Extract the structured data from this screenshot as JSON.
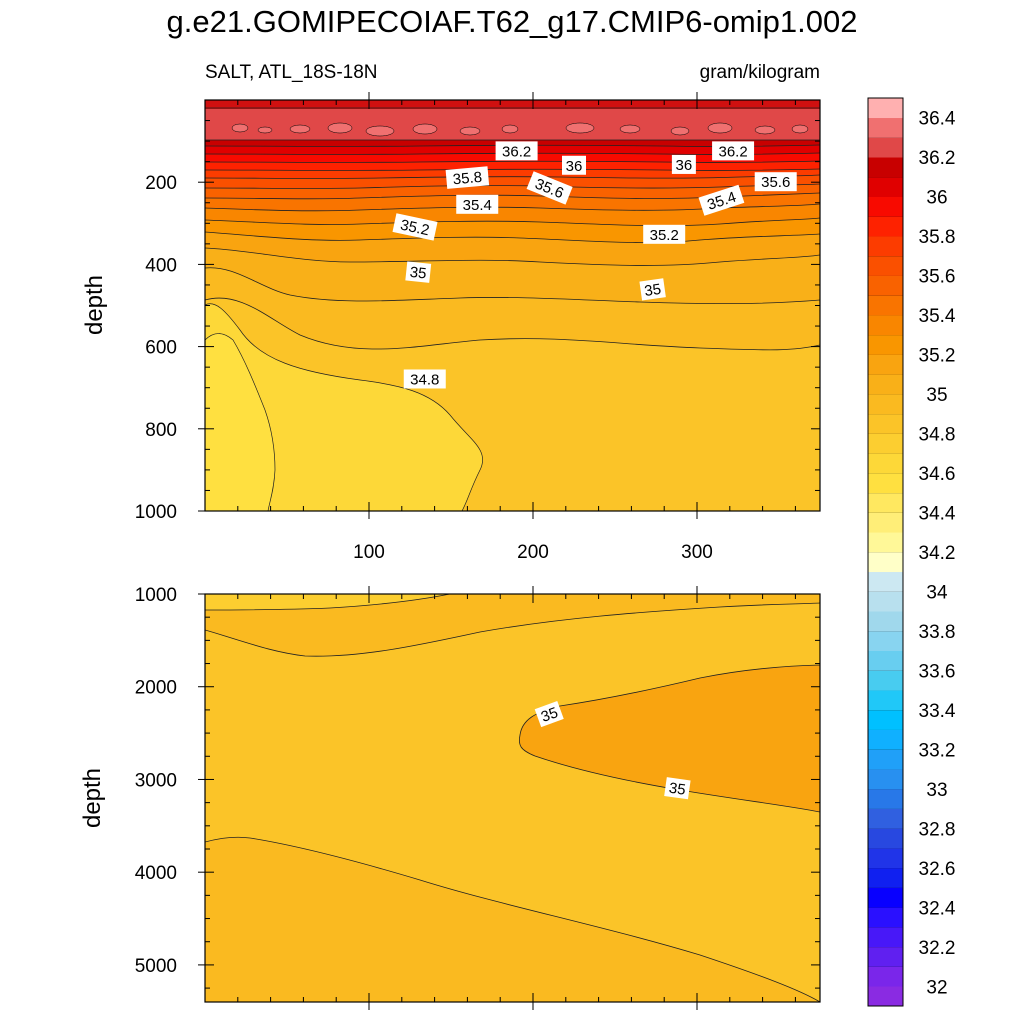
{
  "title": "g.e21.GOMIPECOIAF.T62_g17.CMIP6-omip1.002",
  "subtitle_left": "SALT, ATL_18S-18N",
  "subtitle_right": "gram/kilogram",
  "colorbar": {
    "levels": [
      32,
      32.1,
      32.2,
      32.3,
      32.4,
      32.5,
      32.6,
      32.7,
      32.8,
      32.9,
      33,
      33.1,
      33.2,
      33.3,
      33.4,
      33.5,
      33.6,
      33.7,
      33.8,
      33.9,
      34,
      34.1,
      34.2,
      34.3,
      34.4,
      34.5,
      34.6,
      34.7,
      34.8,
      34.9,
      35,
      35.1,
      35.2,
      35.3,
      35.4,
      35.5,
      35.6,
      35.7,
      35.8,
      35.9,
      36,
      36.1,
      36.2,
      36.3,
      36.4,
      36.5
    ],
    "labels": [
      "32",
      "32.2",
      "32.4",
      "32.6",
      "32.8",
      "33",
      "33.2",
      "33.4",
      "33.6",
      "33.8",
      "34",
      "34.2",
      "34.4",
      "34.6",
      "34.8",
      "35",
      "35.2",
      "35.4",
      "35.6",
      "35.8",
      "36",
      "36.2",
      "36.4"
    ],
    "colors": [
      "#8a2be2",
      "#7a26ea",
      "#6020f0",
      "#4818f8",
      "#2a10ff",
      "#0800ff",
      "#1020f0",
      "#2034e8",
      "#2848e0",
      "#3060e0",
      "#2878e8",
      "#2890f0",
      "#20a0f8",
      "#10b0ff",
      "#00c0ff",
      "#20c8f8",
      "#48ccf0",
      "#68cef0",
      "#88d4f0",
      "#a0d8ec",
      "#b8e0ee",
      "#cce8f2",
      "#ffffc8",
      "#fff898",
      "#ffee78",
      "#ffe860",
      "#ffe040",
      "#fdd838",
      "#fcce30",
      "#fbc428",
      "#faba20",
      "#f9b018",
      "#f9a410",
      "#f99600",
      "#f98600",
      "#f97400",
      "#f96200",
      "#fa5000",
      "#fc3c00",
      "#fe2200",
      "#f80a00",
      "#e00000",
      "#c80000",
      "#e04848",
      "#f07070",
      "#ffb0b0"
    ]
  },
  "chart_data": [
    {
      "type": "contour",
      "panel": "upper",
      "variable": "SALT",
      "region": "ATL_18S-18N",
      "units": "gram/kilogram",
      "xlabel": "",
      "ylabel": "depth",
      "xlim": [
        0,
        375
      ],
      "ylim": [
        1000,
        0
      ],
      "xticks": [
        100,
        200,
        300
      ],
      "yticks": [
        200,
        400,
        600,
        800,
        1000
      ],
      "contour_labels": [
        {
          "text": "36.2",
          "x": 190,
          "y": 125
        },
        {
          "text": "36",
          "x": 225,
          "y": 160
        },
        {
          "text": "36",
          "x": 292,
          "y": 158
        },
        {
          "text": "36.2",
          "x": 322,
          "y": 125
        },
        {
          "text": "35.8",
          "x": 160,
          "y": 190
        },
        {
          "text": "35.6",
          "x": 210,
          "y": 215
        },
        {
          "text": "35.6",
          "x": 348,
          "y": 200
        },
        {
          "text": "35.4",
          "x": 166,
          "y": 255
        },
        {
          "text": "35.4",
          "x": 315,
          "y": 245
        },
        {
          "text": "35.2",
          "x": 128,
          "y": 310
        },
        {
          "text": "35.2",
          "x": 280,
          "y": 328
        },
        {
          "text": "35",
          "x": 130,
          "y": 420
        },
        {
          "text": "35",
          "x": 273,
          "y": 462
        },
        {
          "text": "34.8",
          "x": 134,
          "y": 680
        }
      ]
    },
    {
      "type": "contour",
      "panel": "lower",
      "variable": "SALT",
      "region": "ATL_18S-18N",
      "units": "gram/kilogram",
      "xlabel": "",
      "ylabel": "depth",
      "xlim": [
        0,
        375
      ],
      "ylim": [
        5400,
        1000
      ],
      "yticks": [
        1000,
        2000,
        3000,
        4000,
        5000
      ],
      "contour_labels": [
        {
          "text": "35",
          "x": 210,
          "y": 2300
        },
        {
          "text": "35",
          "x": 288,
          "y": 3100
        }
      ]
    }
  ]
}
